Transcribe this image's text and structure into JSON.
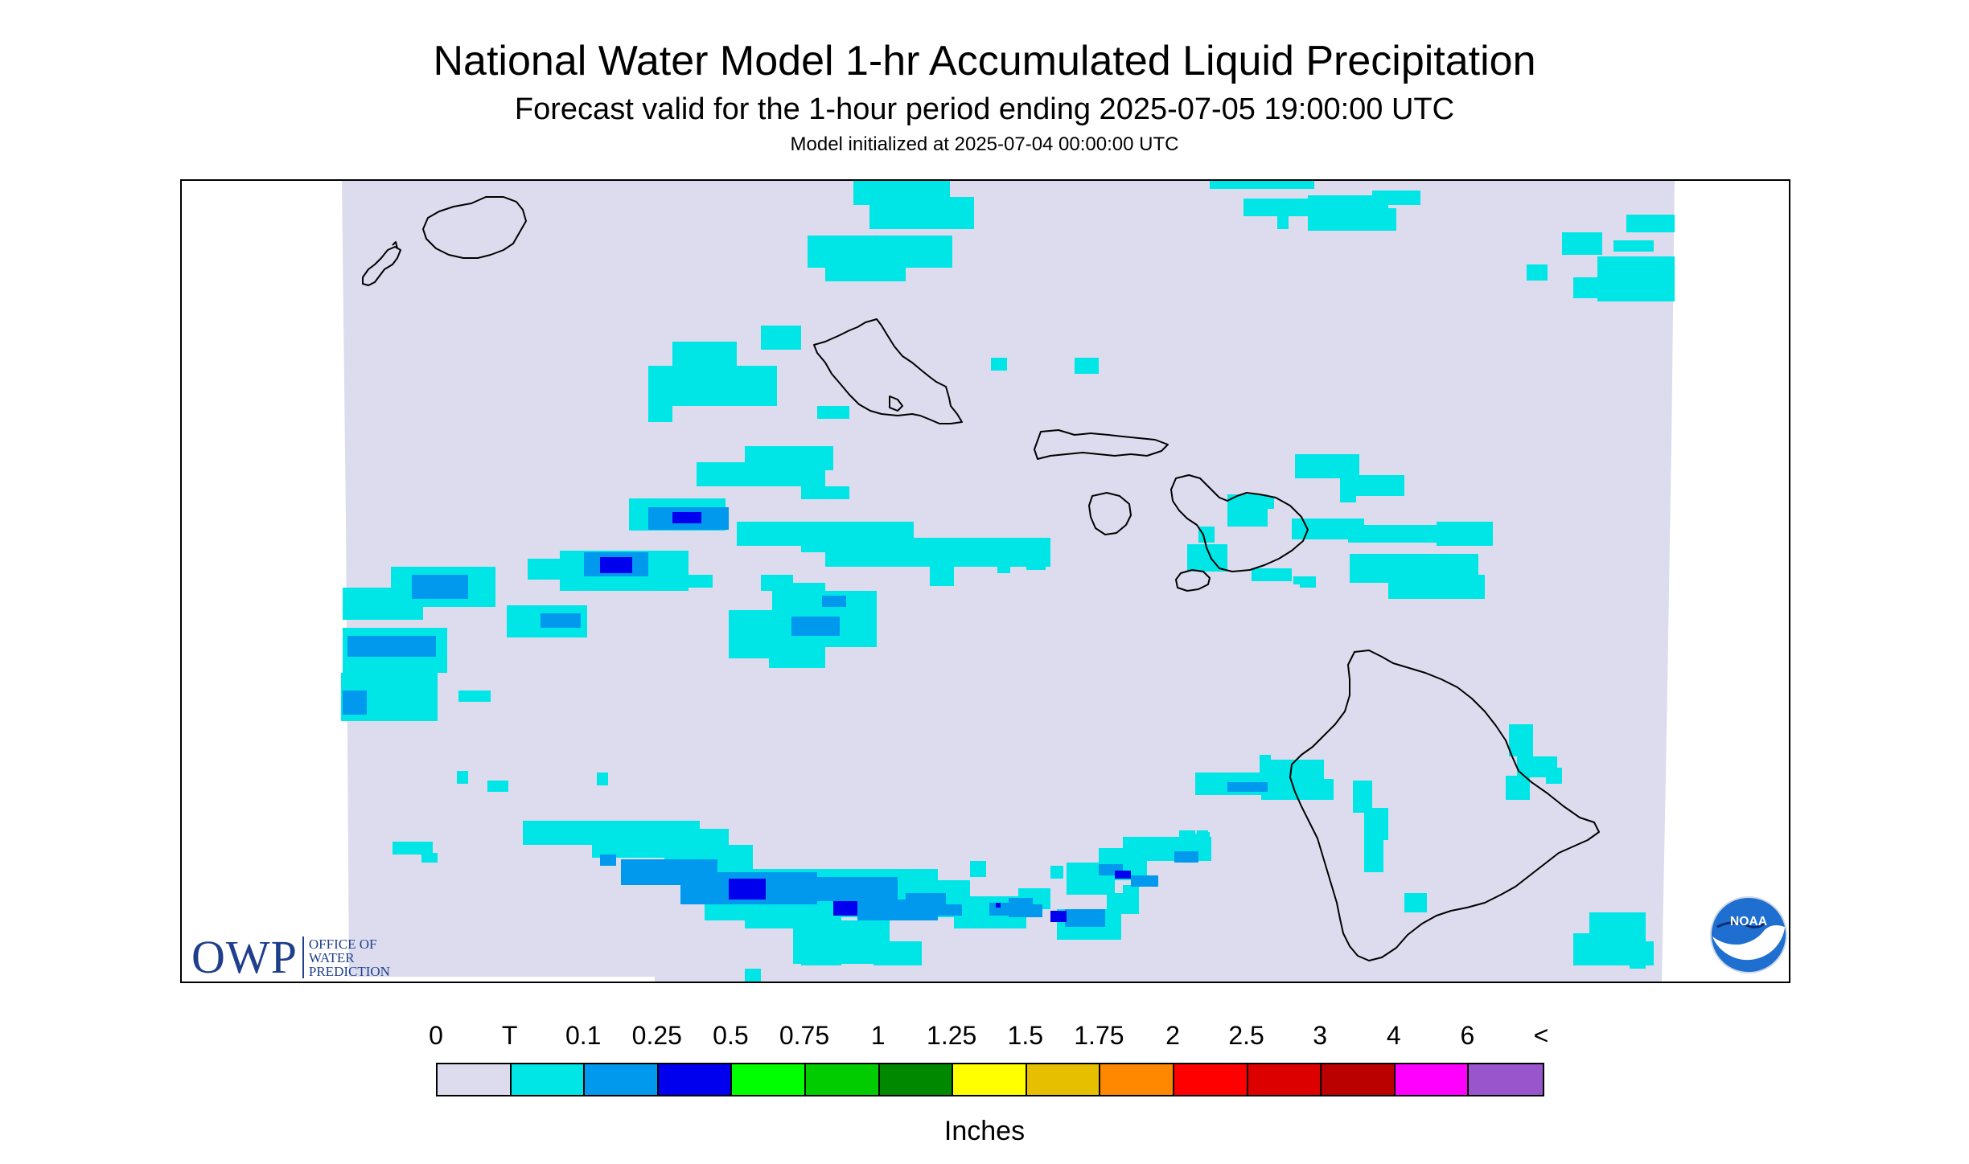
{
  "title": "National Water Model 1-hr Accumulated Liquid Precipitation",
  "subtitle": "Forecast valid for the 1-hour period ending 2025-07-05 19:00:00 UTC",
  "init_line": "Model initialized at 2025-07-04 00:00:00 UTC",
  "colors": {
    "background_field": "#dcdcee",
    "coastline": "#000000",
    "owp_blue": "#1f3f8c"
  },
  "owp_logo": {
    "letters": "OWP",
    "line1": "OFFICE OF",
    "line2": "WATER",
    "line3": "PREDICTION"
  },
  "noaa_logo": {
    "text": "NOAA"
  },
  "legend": {
    "unit": "Inches",
    "ticks": [
      "0",
      "T",
      "0.1",
      "0.25",
      "0.5",
      "0.75",
      "1",
      "1.25",
      "1.5",
      "1.75",
      "2",
      "2.5",
      "3",
      "4",
      "6",
      "<"
    ],
    "colors": [
      "#dcdcee",
      "#00e5e5",
      "#0099ee",
      "#0000ee",
      "#00ff00",
      "#00cc00",
      "#008800",
      "#ffff00",
      "#e6c000",
      "#ff8800",
      "#ff0000",
      "#dd0000",
      "#bb0000",
      "#ff00ff",
      "#9955cc"
    ]
  },
  "map": {
    "region": "Hawaiian Islands",
    "islands": [
      "Niihau",
      "Kauai",
      "Oahu",
      "Molokai",
      "Lanai",
      "Maui",
      "Kahoolawe",
      "Hawaii"
    ]
  }
}
